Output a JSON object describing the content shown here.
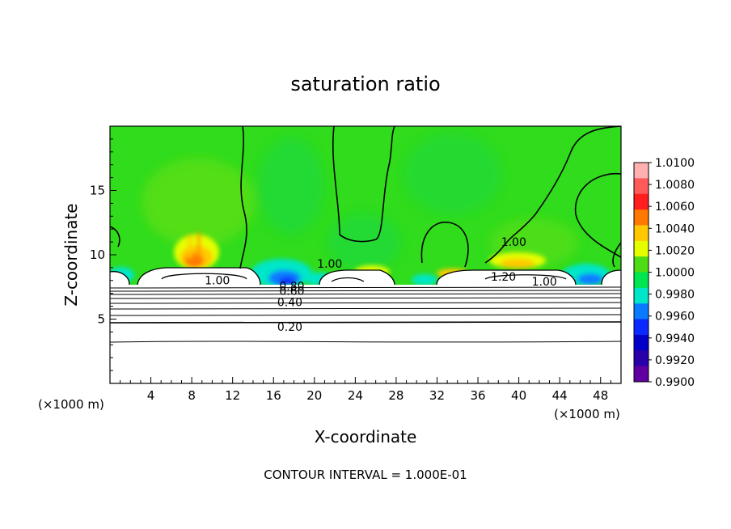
{
  "chart_data": {
    "type": "heatmap",
    "title": "saturation ratio",
    "xlabel": "X-coordinate",
    "ylabel": "Z-coordinate",
    "x_unit": "(×1000 m)",
    "x_unit_right": "(×1000 m)",
    "xlim": [
      0,
      50
    ],
    "ylim": [
      0,
      20
    ],
    "x_ticks": [
      4,
      8,
      12,
      16,
      20,
      24,
      28,
      32,
      36,
      40,
      44,
      48
    ],
    "y_ticks": [
      5,
      10,
      15
    ],
    "footer": "CONTOUR INTERVAL = 1.000E-01",
    "colorbar": {
      "min": 0.99,
      "max": 1.01,
      "labels": [
        "1.0100",
        "1.0080",
        "1.0060",
        "1.0040",
        "1.0020",
        "1.0000",
        "0.9980",
        "0.9960",
        "0.9940",
        "0.9920",
        "0.9900"
      ],
      "colors": [
        "#ffb0b0",
        "#ff5a5a",
        "#ff1e1e",
        "#ff7800",
        "#ffc800",
        "#e6ff00",
        "#50dc14",
        "#00e650",
        "#00e6c8",
        "#0a7aff",
        "#0a28ff",
        "#0000c8",
        "#2a00aa",
        "#6000a0"
      ]
    },
    "contour_labels": [
      {
        "text": "1.00",
        "x": 10.5,
        "z": 7.7
      },
      {
        "text": "1.00",
        "x": 21.5,
        "z": 9.0
      },
      {
        "text": "1.00",
        "x": 39.5,
        "z": 10.7
      },
      {
        "text": "0.80",
        "x": 17.8,
        "z": 7.25
      },
      {
        "text": "0.60",
        "x": 17.8,
        "z": 6.9
      },
      {
        "text": "0.40",
        "x": 17.6,
        "z": 6.0
      },
      {
        "text": "0.20",
        "x": 17.6,
        "z": 4.1
      },
      {
        "text": "1.20",
        "x": 38.5,
        "z": 8.0
      },
      {
        "text": "1.00",
        "x": 42.5,
        "z": 7.6
      }
    ]
  }
}
